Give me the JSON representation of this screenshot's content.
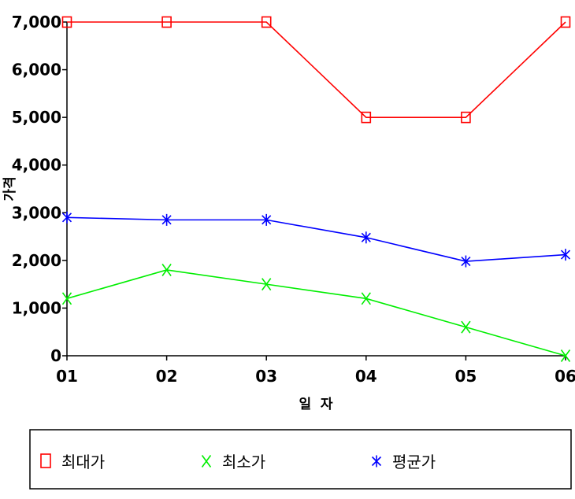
{
  "chart_data": {
    "type": "line",
    "categories": [
      "01",
      "02",
      "03",
      "04",
      "05",
      "06"
    ],
    "xlabel": "일  자",
    "ylabel": "가격",
    "ylim": [
      0,
      7000
    ],
    "yticks": [
      "0",
      "1,000",
      "2,000",
      "3,000",
      "4,000",
      "5,000",
      "6,000",
      "7,000"
    ],
    "grid": false,
    "legend_position": "bottom",
    "series": [
      {
        "name": "최대가",
        "color": "#ff0000",
        "marker": "square",
        "values": [
          7000,
          7000,
          7000,
          5000,
          5000,
          7000
        ]
      },
      {
        "name": "최소가",
        "color": "#00ee00",
        "marker": "x",
        "values": [
          1200,
          1800,
          1500,
          1200,
          600,
          0
        ]
      },
      {
        "name": "평균가",
        "color": "#0000ff",
        "marker": "asterisk",
        "values": [
          2900,
          2850,
          2850,
          2480,
          1980,
          2120
        ]
      }
    ]
  }
}
